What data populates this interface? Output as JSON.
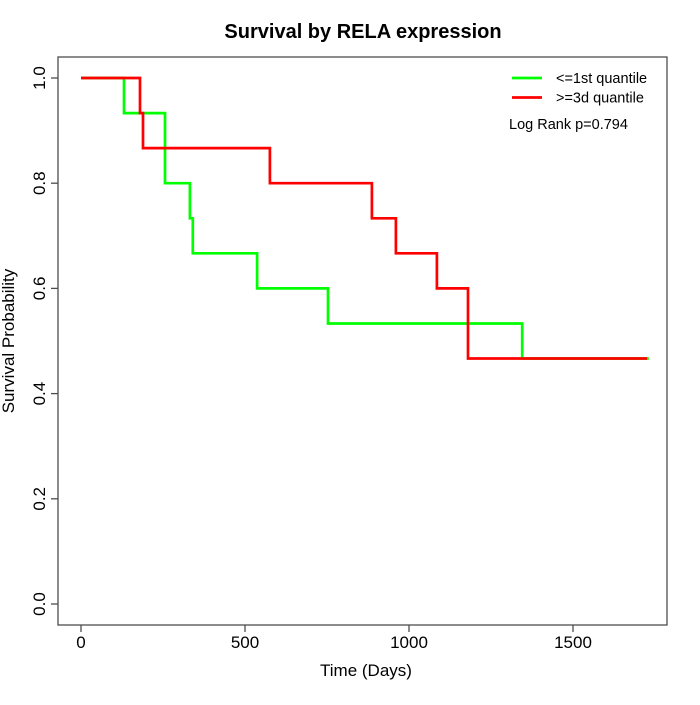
{
  "chart_data": {
    "type": "line",
    "subtype": "kaplan-meier-step",
    "title": "Survival by RELA expression",
    "xlabel": "Time (Days)",
    "ylabel": "Survival Probability",
    "xlim": [
      0,
      1725
    ],
    "ylim": [
      0.0,
      1.0
    ],
    "x_ticks": [
      0,
      500,
      1000,
      1500
    ],
    "y_ticks": [
      "0.0",
      "0.2",
      "0.4",
      "0.6",
      "0.8",
      "1.0"
    ],
    "grid": false,
    "legend_position": "top-right",
    "annotation": "Log Rank p=0.794",
    "series": [
      {
        "name": "<=1st quantile",
        "color": "#00FF00",
        "start": [
          0,
          1.0
        ],
        "drops": [
          [
            131,
            0.9333
          ],
          [
            256,
            0.8
          ],
          [
            332,
            0.7333
          ],
          [
            341,
            0.6667
          ],
          [
            537,
            0.6
          ],
          [
            753,
            0.5333
          ],
          [
            1345,
            0.4667
          ]
        ],
        "end_time": 1731
      },
      {
        "name": ">=3d quantile",
        "color": "#FF0000",
        "start": [
          0,
          1.0
        ],
        "drops": [
          [
            180,
            0.9333
          ],
          [
            189,
            0.8667
          ],
          [
            576,
            0.8
          ],
          [
            887,
            0.7333
          ],
          [
            960,
            0.6667
          ],
          [
            1085,
            0.6
          ],
          [
            1180,
            0.4667
          ]
        ],
        "end_time": 1726
      }
    ]
  }
}
